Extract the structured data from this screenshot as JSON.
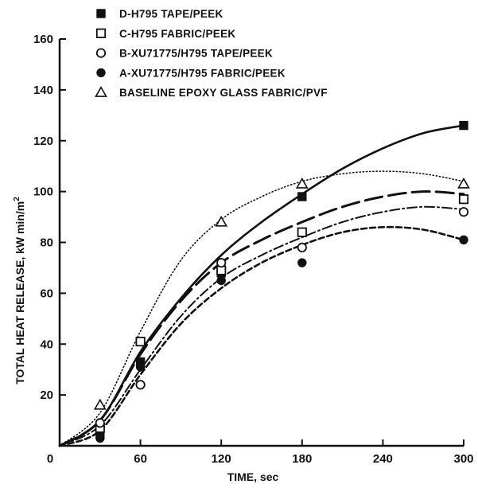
{
  "chart_data": {
    "type": "scatter",
    "title": "",
    "xlabel": "TIME, sec",
    "ylabel": "TOTAL HEAT RELEASE, kW min/m",
    "ylabel_superscript": "2",
    "xlim": [
      0,
      300
    ],
    "ylim": [
      0,
      160
    ],
    "x_ticks": [
      0,
      60,
      120,
      180,
      240,
      300
    ],
    "x_tick_labels": [
      "0",
      "60",
      "120",
      "180",
      "240",
      "300"
    ],
    "y_ticks": [
      0,
      20,
      40,
      60,
      80,
      100,
      120,
      140,
      160
    ],
    "y_tick_labels": [
      "0",
      "20",
      "40",
      "60",
      "80",
      "100",
      "120",
      "140",
      "160"
    ],
    "grid": false,
    "legend_position": "top",
    "series": [
      {
        "name": "D-H795 TAPE/PEEK",
        "marker": "filled-square",
        "line_style": "solid",
        "x": [
          30,
          60,
          120,
          180,
          300
        ],
        "y": [
          5,
          33,
          68,
          98,
          126
        ],
        "curve_x": [
          0,
          30,
          60,
          90,
          120,
          150,
          180,
          210,
          240,
          270,
          300
        ],
        "curve_y": [
          0,
          10,
          37,
          58,
          75,
          88,
          99,
          109,
          117,
          123,
          126
        ]
      },
      {
        "name": "C-H795 FABRIC/PEEK",
        "marker": "open-square",
        "line_style": "long-dash",
        "x": [
          30,
          60,
          120,
          180,
          300
        ],
        "y": [
          7,
          41,
          69,
          84,
          97
        ],
        "curve_x": [
          0,
          30,
          60,
          90,
          120,
          150,
          180,
          210,
          240,
          270,
          300
        ],
        "curve_y": [
          0,
          10,
          36,
          57,
          72,
          81,
          88,
          94,
          98,
          100,
          99
        ]
      },
      {
        "name": "B-XU71775/H795 TAPE/PEEK",
        "marker": "open-circle",
        "line_style": "dash-dot",
        "x": [
          30,
          60,
          120,
          180,
          300
        ],
        "y": [
          9,
          24,
          72,
          78,
          92
        ],
        "curve_x": [
          0,
          30,
          60,
          90,
          120,
          150,
          180,
          210,
          240,
          270,
          300
        ],
        "curve_y": [
          0,
          8,
          30,
          51,
          66,
          75,
          82,
          88,
          92,
          94,
          93
        ]
      },
      {
        "name": "A-XU71775/H795 FABRIC/PEEK",
        "marker": "filled-circle",
        "line_style": "short-dash",
        "x": [
          30,
          60,
          120,
          180,
          300
        ],
        "y": [
          3,
          31,
          65,
          72,
          81
        ],
        "curve_x": [
          0,
          30,
          60,
          90,
          120,
          150,
          180,
          210,
          240,
          270,
          300
        ],
        "curve_y": [
          0,
          6,
          28,
          48,
          62,
          72,
          79,
          84,
          86,
          85,
          81
        ]
      },
      {
        "name": "BASELINE EPOXY GLASS FABRIC/PVF",
        "marker": "open-triangle",
        "line_style": "dotted",
        "x": [
          30,
          120,
          180,
          300
        ],
        "y": [
          16,
          88,
          103,
          103
        ],
        "curve_x": [
          0,
          30,
          60,
          90,
          120,
          150,
          180,
          210,
          240,
          270,
          300
        ],
        "curve_y": [
          0,
          13,
          45,
          73,
          89,
          98,
          104,
          107,
          108,
          107,
          104
        ]
      }
    ]
  }
}
